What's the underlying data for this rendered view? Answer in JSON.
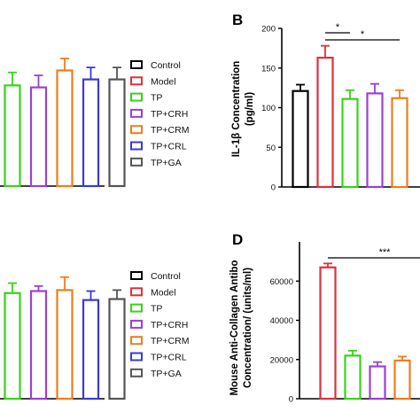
{
  "chart_data": [
    {
      "panel": "",
      "type": "bar",
      "categories": [
        "Control",
        "Model",
        "TP",
        "TP+CRH",
        "TP+CRM",
        "TP+CRL",
        "TP+GA"
      ],
      "visible_categories": [
        "TP",
        "TP+CRH",
        "TP+CRM",
        "TP+CRL",
        "TP+GA"
      ],
      "values": [
        null,
        null,
        1.01,
        0.99,
        1.16,
        1.07,
        1.07
      ],
      "errors": [
        null,
        null,
        0.13,
        0.12,
        0.12,
        0.12,
        0.12
      ],
      "ylabel": "",
      "ylim": [
        0,
        1.6
      ]
    },
    {
      "panel": "B",
      "type": "bar",
      "categories": [
        "Control",
        "Model",
        "TP",
        "TP+CRH",
        "TP+CRM",
        "TP+CRL",
        "TP+GA"
      ],
      "visible_categories": [
        "Control",
        "Model",
        "TP",
        "TP+CRH",
        "TP+CRM"
      ],
      "values": [
        121,
        163,
        111,
        118,
        112,
        null,
        null
      ],
      "errors": [
        8,
        15,
        11,
        12,
        10,
        null,
        null
      ],
      "ylabel": "IL-1β Concentration (pg/ml)",
      "yticks": [
        0,
        50,
        100,
        150,
        200
      ],
      "ylim": [
        0,
        200
      ],
      "significance": [
        {
          "from": "Model",
          "to": "TP",
          "label": "*"
        },
        {
          "from": "Model",
          "to": "TP+CRM",
          "label": "*"
        }
      ]
    },
    {
      "panel": "",
      "type": "bar",
      "categories": [
        "Control",
        "Model",
        "TP",
        "TP+CRH",
        "TP+CRM",
        "TP+CRL",
        "TP+GA"
      ],
      "visible_categories": [
        "TP",
        "TP+CRH",
        "TP+CRM",
        "TP+CRL",
        "TP+GA"
      ],
      "values": [
        null,
        null,
        1.06,
        1.08,
        1.09,
        0.99,
        1.0
      ],
      "errors": [
        null,
        null,
        0.1,
        0.05,
        0.13,
        0.09,
        0.09
      ],
      "ylabel": "",
      "ylim": [
        0,
        1.6
      ]
    },
    {
      "panel": "D",
      "type": "bar",
      "categories": [
        "Control",
        "Model",
        "TP",
        "TP+CRH",
        "TP+CRM",
        "TP+CRL",
        "TP+GA"
      ],
      "visible_categories": [
        "Model",
        "TP",
        "TP+CRH",
        "TP+CRM"
      ],
      "values": [
        null,
        67000,
        22000,
        16500,
        19500,
        null,
        null
      ],
      "errors": [
        null,
        2000,
        2500,
        2200,
        2000,
        null,
        null
      ],
      "ylabel": "Mouse Anti-Collagen Antibo Concentration/ (units/ml)",
      "yticks": [
        0,
        20000,
        40000,
        60000
      ],
      "ylim": [
        0,
        80000
      ],
      "significance": [
        {
          "from": "Model",
          "to": "TP+CRM",
          "label": "***"
        }
      ]
    }
  ],
  "legend": {
    "entries": [
      "Control",
      "Model",
      "TP",
      "TP+CRH",
      "TP+CRM",
      "TP+CRL",
      "TP+GA"
    ],
    "colors": [
      "#000000",
      "#e0303c",
      "#39d21a",
      "#9b3fd6",
      "#f07c1e",
      "#3a3ad6",
      "#555555"
    ]
  },
  "labels": {
    "panel_b": "B",
    "panel_d": "D",
    "ylabel_b_line1": "IL-1β Concentration",
    "ylabel_b_line2": "(pg/ml)",
    "ylabel_d_line1": "Mouse Anti-Collagen Antibo",
    "ylabel_d_line2": "Concentration/ (units/ml)"
  }
}
